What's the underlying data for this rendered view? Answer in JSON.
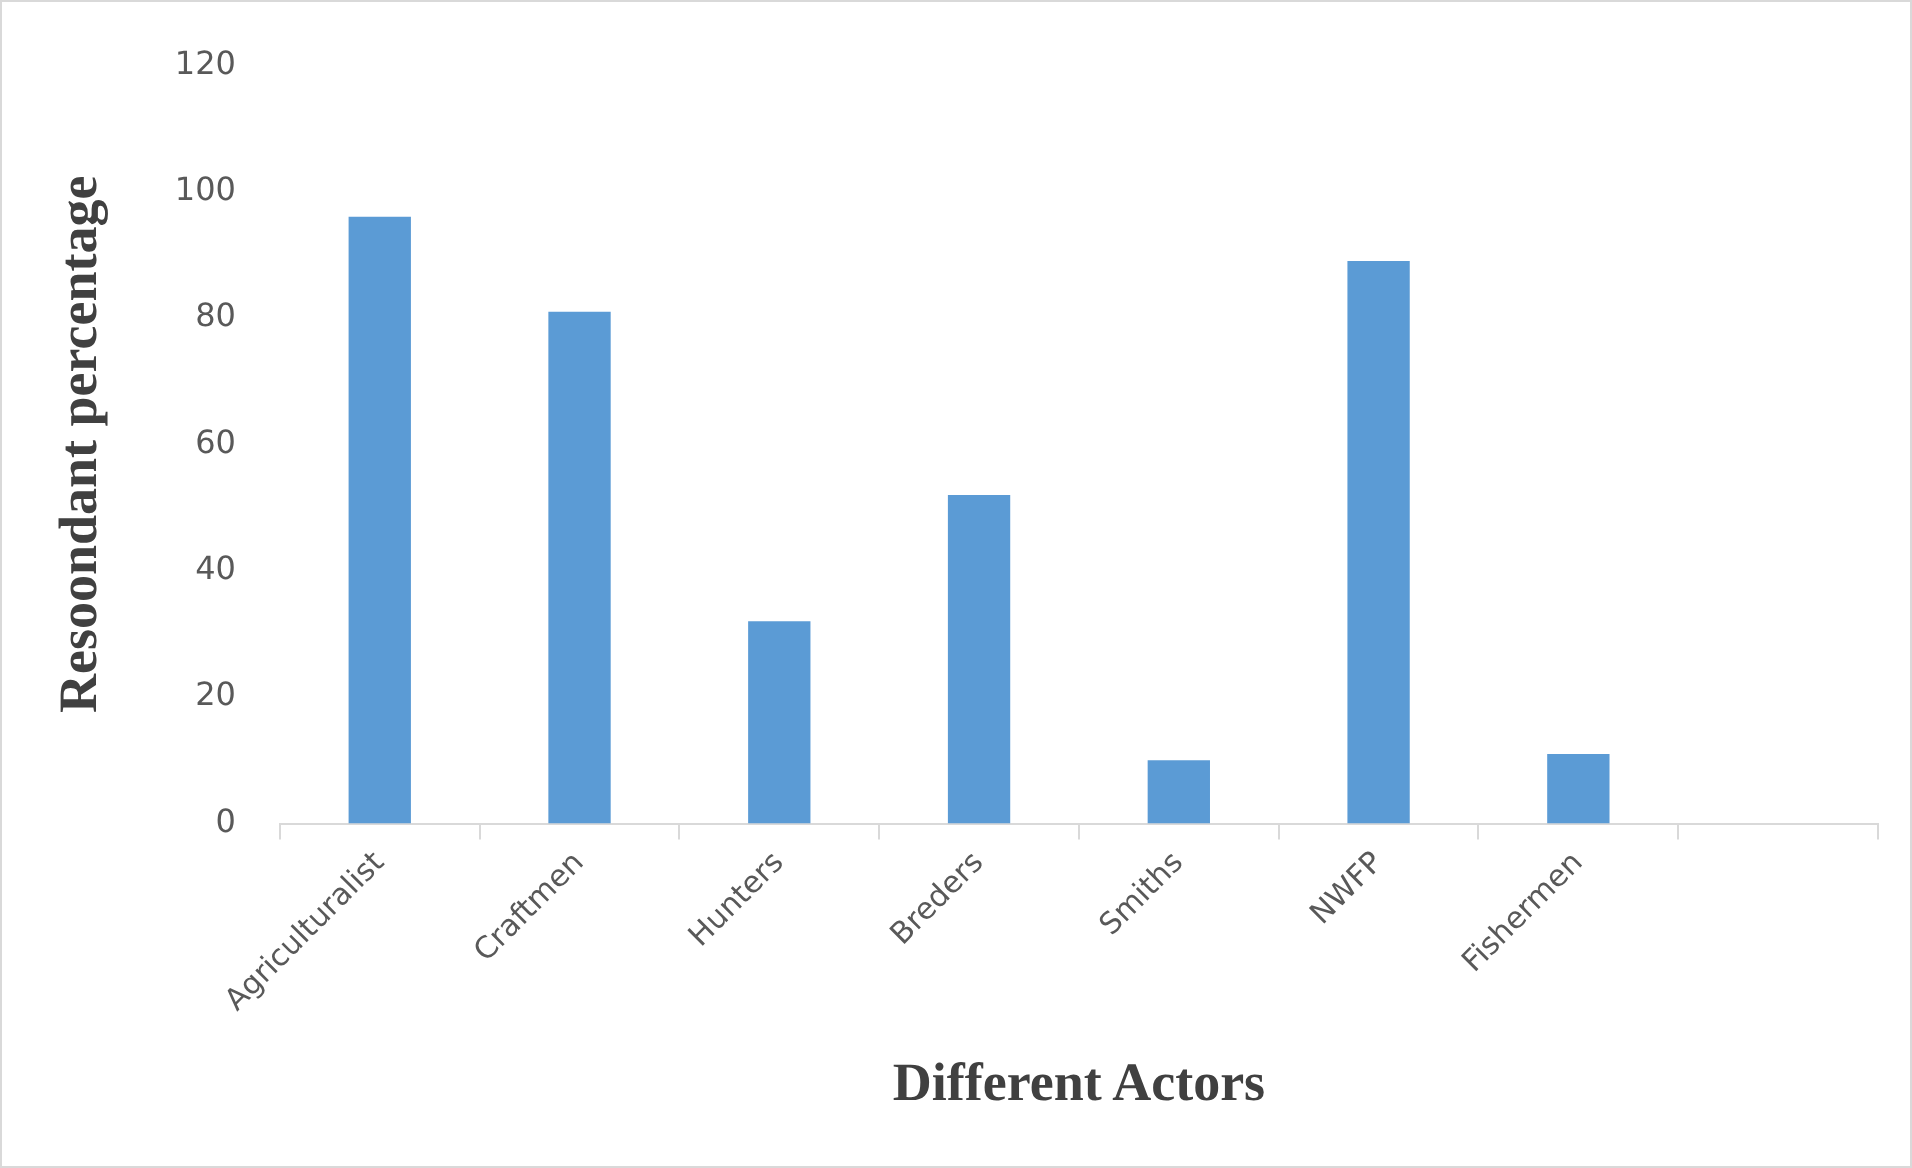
{
  "chart_data": {
    "type": "bar",
    "xlabel": "Different Actors",
    "ylabel": "Resoondant percentage",
    "categories": [
      "Agriculturalist",
      "Craftmen",
      "Hunters",
      "Breders",
      "Smiths",
      "NWFP",
      "Fishermen",
      null
    ],
    "values": [
      96,
      81,
      32,
      52,
      10,
      89,
      11,
      null
    ],
    "color": "#5b9bd5",
    "ylim": [
      0,
      120
    ],
    "yticks": [
      0,
      20,
      40,
      60,
      80,
      100,
      120
    ],
    "grid": false,
    "legend": false
  }
}
